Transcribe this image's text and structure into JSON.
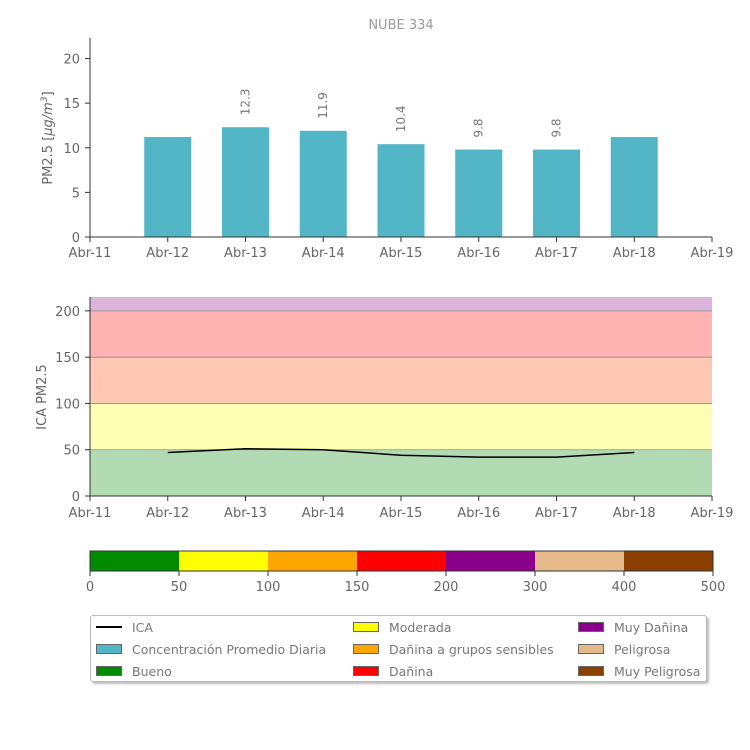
{
  "chart_data": [
    {
      "type": "bar",
      "title": "NUBE 334",
      "ylabel": "PM2.5 [μg/m³]",
      "ylabel_parts": {
        "text": "PM2.5 [",
        "unit": "μg/m",
        "sup": "3",
        "close": "]"
      },
      "x_ticks": [
        "Abr-11",
        "Abr-12",
        "Abr-13",
        "Abr-14",
        "Abr-15",
        "Abr-16",
        "Abr-17",
        "Abr-18",
        "Abr-19"
      ],
      "categories": [
        "Abr-12",
        "Abr-13",
        "Abr-14",
        "Abr-15",
        "Abr-16",
        "Abr-17",
        "Abr-18"
      ],
      "values": [
        11.2,
        12.3,
        11.9,
        10.4,
        9.8,
        9.8,
        11.2
      ],
      "data_labels": [
        "",
        "12.3",
        "11.9",
        "10.4",
        "9.8",
        "9.8",
        ""
      ],
      "y_ticks": [
        0,
        5,
        10,
        15,
        20
      ],
      "ylim": [
        0,
        22.3
      ],
      "bar_color": "#52b6c6"
    },
    {
      "type": "line",
      "ylabel": "ICA PM2.5",
      "x_ticks": [
        "Abr-11",
        "Abr-12",
        "Abr-13",
        "Abr-14",
        "Abr-15",
        "Abr-16",
        "Abr-17",
        "Abr-18",
        "Abr-19"
      ],
      "x": [
        "Abr-12",
        "Abr-13",
        "Abr-14",
        "Abr-15",
        "Abr-16",
        "Abr-17",
        "Abr-18"
      ],
      "values": [
        47,
        51,
        50,
        44,
        42,
        42,
        47
      ],
      "y_ticks": [
        0,
        50,
        100,
        150,
        200
      ],
      "ylim": [
        0,
        215
      ],
      "line_color": "#000000",
      "bands": [
        {
          "from": 0,
          "to": 50,
          "color": "#b3dbb3"
        },
        {
          "from": 50,
          "to": 100,
          "color": "#ffffb3"
        },
        {
          "from": 100,
          "to": 150,
          "color": "#ffc8b3"
        },
        {
          "from": 150,
          "to": 200,
          "color": "#ffb3b3"
        },
        {
          "from": 200,
          "to": 215,
          "color": "#dbb3db"
        }
      ]
    }
  ],
  "colorbar": {
    "ticks": [
      "0",
      "50",
      "100",
      "150",
      "200",
      "300",
      "400",
      "500"
    ],
    "segments": [
      "#008b00",
      "#ffff00",
      "#ffa500",
      "#ff0000",
      "#8b008b",
      "#e5b98a",
      "#8b4000"
    ]
  },
  "legend": {
    "items": [
      {
        "label": "ICA",
        "kind": "line",
        "color": "#000000"
      },
      {
        "label": "Concentración Promedio Diaria",
        "kind": "box",
        "color": "#52b6c6"
      },
      {
        "label": "Bueno",
        "kind": "box",
        "color": "#008b00"
      },
      {
        "label": "Moderada",
        "kind": "box",
        "color": "#ffff00"
      },
      {
        "label": "Dañina a grupos sensibles",
        "kind": "box",
        "color": "#ffa500"
      },
      {
        "label": "Dañina",
        "kind": "box",
        "color": "#ff0000"
      },
      {
        "label": "Muy Dañina",
        "kind": "box",
        "color": "#8b008b"
      },
      {
        "label": "Peligrosa",
        "kind": "box",
        "color": "#e5b98a"
      },
      {
        "label": "Muy Peligrosa",
        "kind": "box",
        "color": "#8b4000"
      }
    ]
  }
}
